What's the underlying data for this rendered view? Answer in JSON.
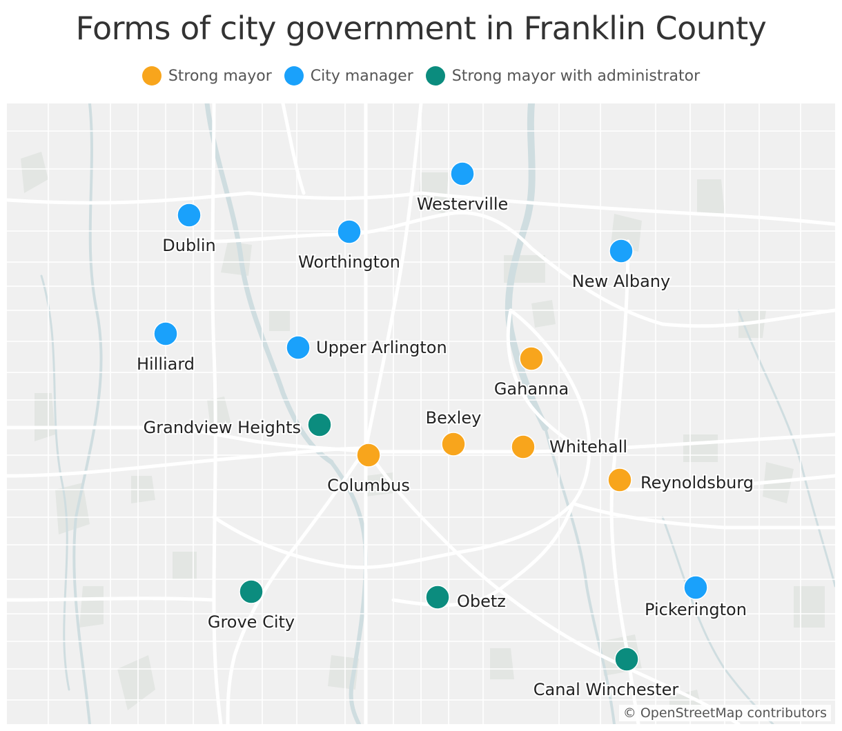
{
  "title": "Forms of city government in Franklin County",
  "legend": [
    {
      "label": "Strong mayor",
      "color": "#F8A51C"
    },
    {
      "label": "City manager",
      "color": "#1AA1FB"
    },
    {
      "label": "Strong mayor with administrator",
      "color": "#0B8C7E"
    }
  ],
  "attribution": "© OpenStreetMap contributors",
  "cities": [
    {
      "name": "Westerville",
      "type": "City manager"
    },
    {
      "name": "Dublin",
      "type": "City manager"
    },
    {
      "name": "Worthington",
      "type": "City manager"
    },
    {
      "name": "New Albany",
      "type": "City manager"
    },
    {
      "name": "Hilliard",
      "type": "City manager"
    },
    {
      "name": "Upper Arlington",
      "type": "City manager"
    },
    {
      "name": "Gahanna",
      "type": "Strong mayor"
    },
    {
      "name": "Grandview Heights",
      "type": "Strong mayor with administrator"
    },
    {
      "name": "Bexley",
      "type": "Strong mayor"
    },
    {
      "name": "Whitehall",
      "type": "Strong mayor"
    },
    {
      "name": "Columbus",
      "type": "Strong mayor"
    },
    {
      "name": "Reynoldsburg",
      "type": "Strong mayor"
    },
    {
      "name": "Pickerington",
      "type": "City manager"
    },
    {
      "name": "Grove City",
      "type": "Strong mayor with administrator"
    },
    {
      "name": "Obetz",
      "type": "Strong mayor with administrator"
    },
    {
      "name": "Canal Winchester",
      "type": "Strong mayor with administrator"
    }
  ]
}
